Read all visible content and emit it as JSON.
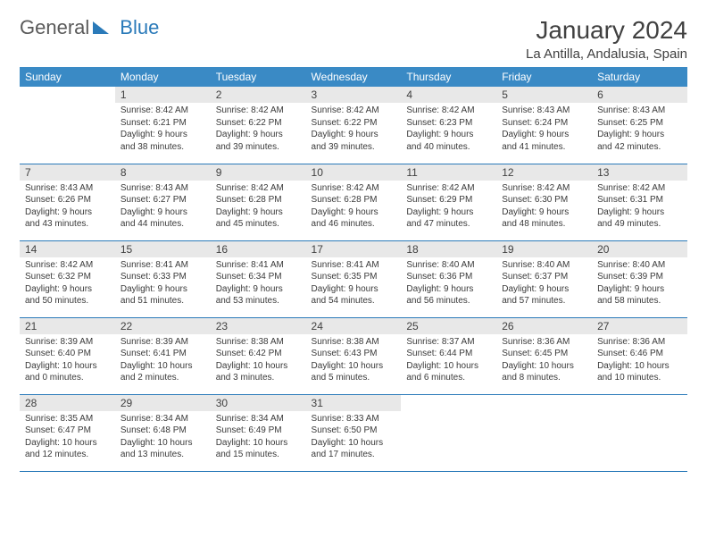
{
  "logo": {
    "text1": "General",
    "text2": "Blue"
  },
  "header": {
    "title": "January 2024",
    "location": "La Antilla, Andalusia, Spain"
  },
  "colors": {
    "header_bg": "#3a8ac5",
    "rule": "#2a7ab9",
    "daynum_bg": "#e8e8e8",
    "text": "#3a3a3a",
    "page_bg": "#ffffff"
  },
  "dayNames": [
    "Sunday",
    "Monday",
    "Tuesday",
    "Wednesday",
    "Thursday",
    "Friday",
    "Saturday"
  ],
  "weeks": [
    [
      null,
      {
        "n": "1",
        "sr": "Sunrise: 8:42 AM",
        "ss": "Sunset: 6:21 PM",
        "d1": "Daylight: 9 hours",
        "d2": "and 38 minutes."
      },
      {
        "n": "2",
        "sr": "Sunrise: 8:42 AM",
        "ss": "Sunset: 6:22 PM",
        "d1": "Daylight: 9 hours",
        "d2": "and 39 minutes."
      },
      {
        "n": "3",
        "sr": "Sunrise: 8:42 AM",
        "ss": "Sunset: 6:22 PM",
        "d1": "Daylight: 9 hours",
        "d2": "and 39 minutes."
      },
      {
        "n": "4",
        "sr": "Sunrise: 8:42 AM",
        "ss": "Sunset: 6:23 PM",
        "d1": "Daylight: 9 hours",
        "d2": "and 40 minutes."
      },
      {
        "n": "5",
        "sr": "Sunrise: 8:43 AM",
        "ss": "Sunset: 6:24 PM",
        "d1": "Daylight: 9 hours",
        "d2": "and 41 minutes."
      },
      {
        "n": "6",
        "sr": "Sunrise: 8:43 AM",
        "ss": "Sunset: 6:25 PM",
        "d1": "Daylight: 9 hours",
        "d2": "and 42 minutes."
      }
    ],
    [
      {
        "n": "7",
        "sr": "Sunrise: 8:43 AM",
        "ss": "Sunset: 6:26 PM",
        "d1": "Daylight: 9 hours",
        "d2": "and 43 minutes."
      },
      {
        "n": "8",
        "sr": "Sunrise: 8:43 AM",
        "ss": "Sunset: 6:27 PM",
        "d1": "Daylight: 9 hours",
        "d2": "and 44 minutes."
      },
      {
        "n": "9",
        "sr": "Sunrise: 8:42 AM",
        "ss": "Sunset: 6:28 PM",
        "d1": "Daylight: 9 hours",
        "d2": "and 45 minutes."
      },
      {
        "n": "10",
        "sr": "Sunrise: 8:42 AM",
        "ss": "Sunset: 6:28 PM",
        "d1": "Daylight: 9 hours",
        "d2": "and 46 minutes."
      },
      {
        "n": "11",
        "sr": "Sunrise: 8:42 AM",
        "ss": "Sunset: 6:29 PM",
        "d1": "Daylight: 9 hours",
        "d2": "and 47 minutes."
      },
      {
        "n": "12",
        "sr": "Sunrise: 8:42 AM",
        "ss": "Sunset: 6:30 PM",
        "d1": "Daylight: 9 hours",
        "d2": "and 48 minutes."
      },
      {
        "n": "13",
        "sr": "Sunrise: 8:42 AM",
        "ss": "Sunset: 6:31 PM",
        "d1": "Daylight: 9 hours",
        "d2": "and 49 minutes."
      }
    ],
    [
      {
        "n": "14",
        "sr": "Sunrise: 8:42 AM",
        "ss": "Sunset: 6:32 PM",
        "d1": "Daylight: 9 hours",
        "d2": "and 50 minutes."
      },
      {
        "n": "15",
        "sr": "Sunrise: 8:41 AM",
        "ss": "Sunset: 6:33 PM",
        "d1": "Daylight: 9 hours",
        "d2": "and 51 minutes."
      },
      {
        "n": "16",
        "sr": "Sunrise: 8:41 AM",
        "ss": "Sunset: 6:34 PM",
        "d1": "Daylight: 9 hours",
        "d2": "and 53 minutes."
      },
      {
        "n": "17",
        "sr": "Sunrise: 8:41 AM",
        "ss": "Sunset: 6:35 PM",
        "d1": "Daylight: 9 hours",
        "d2": "and 54 minutes."
      },
      {
        "n": "18",
        "sr": "Sunrise: 8:40 AM",
        "ss": "Sunset: 6:36 PM",
        "d1": "Daylight: 9 hours",
        "d2": "and 56 minutes."
      },
      {
        "n": "19",
        "sr": "Sunrise: 8:40 AM",
        "ss": "Sunset: 6:37 PM",
        "d1": "Daylight: 9 hours",
        "d2": "and 57 minutes."
      },
      {
        "n": "20",
        "sr": "Sunrise: 8:40 AM",
        "ss": "Sunset: 6:39 PM",
        "d1": "Daylight: 9 hours",
        "d2": "and 58 minutes."
      }
    ],
    [
      {
        "n": "21",
        "sr": "Sunrise: 8:39 AM",
        "ss": "Sunset: 6:40 PM",
        "d1": "Daylight: 10 hours",
        "d2": "and 0 minutes."
      },
      {
        "n": "22",
        "sr": "Sunrise: 8:39 AM",
        "ss": "Sunset: 6:41 PM",
        "d1": "Daylight: 10 hours",
        "d2": "and 2 minutes."
      },
      {
        "n": "23",
        "sr": "Sunrise: 8:38 AM",
        "ss": "Sunset: 6:42 PM",
        "d1": "Daylight: 10 hours",
        "d2": "and 3 minutes."
      },
      {
        "n": "24",
        "sr": "Sunrise: 8:38 AM",
        "ss": "Sunset: 6:43 PM",
        "d1": "Daylight: 10 hours",
        "d2": "and 5 minutes."
      },
      {
        "n": "25",
        "sr": "Sunrise: 8:37 AM",
        "ss": "Sunset: 6:44 PM",
        "d1": "Daylight: 10 hours",
        "d2": "and 6 minutes."
      },
      {
        "n": "26",
        "sr": "Sunrise: 8:36 AM",
        "ss": "Sunset: 6:45 PM",
        "d1": "Daylight: 10 hours",
        "d2": "and 8 minutes."
      },
      {
        "n": "27",
        "sr": "Sunrise: 8:36 AM",
        "ss": "Sunset: 6:46 PM",
        "d1": "Daylight: 10 hours",
        "d2": "and 10 minutes."
      }
    ],
    [
      {
        "n": "28",
        "sr": "Sunrise: 8:35 AM",
        "ss": "Sunset: 6:47 PM",
        "d1": "Daylight: 10 hours",
        "d2": "and 12 minutes."
      },
      {
        "n": "29",
        "sr": "Sunrise: 8:34 AM",
        "ss": "Sunset: 6:48 PM",
        "d1": "Daylight: 10 hours",
        "d2": "and 13 minutes."
      },
      {
        "n": "30",
        "sr": "Sunrise: 8:34 AM",
        "ss": "Sunset: 6:49 PM",
        "d1": "Daylight: 10 hours",
        "d2": "and 15 minutes."
      },
      {
        "n": "31",
        "sr": "Sunrise: 8:33 AM",
        "ss": "Sunset: 6:50 PM",
        "d1": "Daylight: 10 hours",
        "d2": "and 17 minutes."
      },
      null,
      null,
      null
    ]
  ]
}
